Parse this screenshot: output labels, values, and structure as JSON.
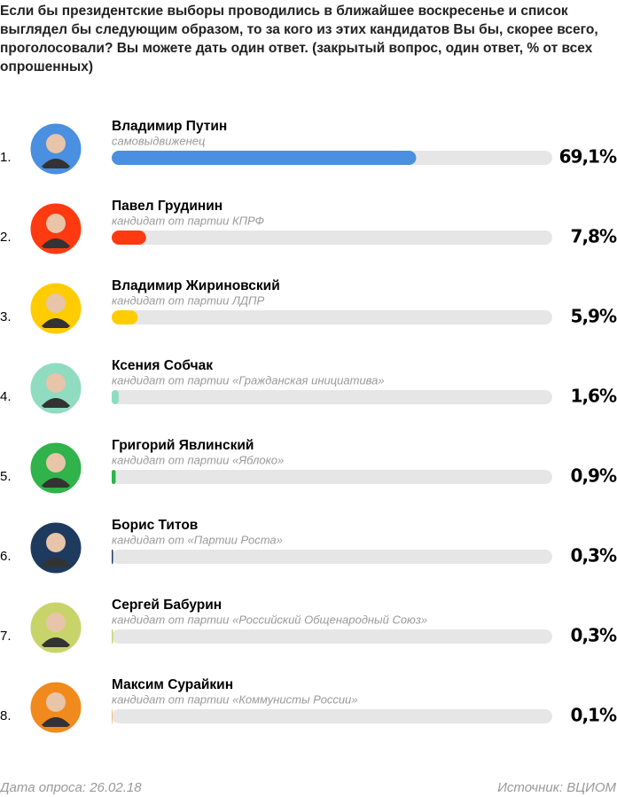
{
  "chart_data": {
    "type": "bar",
    "orientation": "horizontal",
    "title": "Если бы президентские выборы проводились в ближайшее воскресенье и список выглядел бы следующим образом, то за кого из этих кандидатов Вы бы, скорее всего, проголосовали? Вы можете дать один ответ. (закрытый вопрос, один ответ, % от всех опрошенных)",
    "ranks": [
      "1.",
      "2.",
      "3.",
      "4.",
      "5.",
      "6.",
      "7.",
      "8."
    ],
    "categories": [
      "Владимир Путин",
      "Павел Грудинин",
      "Владимир Жириновский",
      "Ксения Собчак",
      "Григорий Явлинский",
      "Борис Титов",
      "Сергей Бабурин",
      "Максим Сурайкин"
    ],
    "subtitles": [
      "самовыдвиженец",
      "кандидат от партии КПРФ",
      "кандидат от партии ЛДПР",
      "кандидат от партии «Гражданская инициатива»",
      "кандидат от партии «Яблоко»",
      "кандидат от «Партии Роста»",
      "кандидат от партии «Российский Общенародный Союз»",
      "кандидат от партии «Коммунисты России»"
    ],
    "values": [
      69.1,
      7.8,
      5.9,
      1.6,
      0.9,
      0.3,
      0.3,
      0.1
    ],
    "value_labels": [
      "69,1%",
      "7,8%",
      "5,9%",
      "1,6%",
      "0,9%",
      "0,3%",
      "0,3%",
      "0,1%"
    ],
    "colors": [
      "#4a8fe0",
      "#ff3a10",
      "#ffcc00",
      "#8fdcc0",
      "#2fb34a",
      "#1e3a5f",
      "#c8d46a",
      "#f08a1c"
    ],
    "xlim": [
      0,
      100
    ],
    "footer_left": "Дата опроса: 26.02.18",
    "footer_right": "Источник: ВЦИОМ"
  }
}
